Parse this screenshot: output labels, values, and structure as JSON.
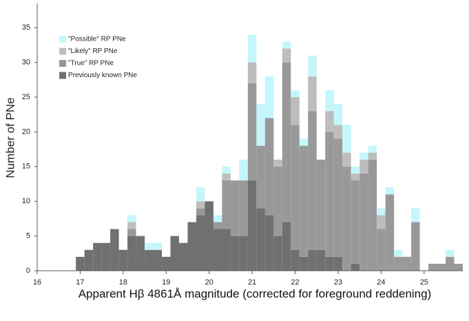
{
  "chart_data": {
    "type": "histogram",
    "xlabel": "Apparent Hβ 4861Å  magnitude (corrected for foreground reddening)",
    "ylabel": "Number of PNe",
    "bins": [
      16.9,
      17.1,
      17.3,
      17.5,
      17.7,
      17.9,
      18.1,
      18.3,
      18.5,
      18.7,
      18.9,
      19.1,
      19.3,
      19.5,
      19.7,
      19.9,
      20.1,
      20.3,
      20.5,
      20.7,
      20.9,
      21.1,
      21.3,
      21.5,
      21.7,
      21.9,
      22.1,
      22.3,
      22.5,
      22.7,
      22.9,
      23.1,
      23.3,
      23.5,
      23.7,
      23.9,
      24.1,
      24.3,
      24.5,
      24.7,
      24.9,
      25.1,
      25.3,
      25.5,
      25.7,
      25.9
    ],
    "series": [
      {
        "name": "Previously known PNe",
        "color": "#707070",
        "values": [
          2,
          3,
          4,
          4,
          6,
          3,
          5,
          5,
          3,
          3,
          2,
          5,
          4,
          7,
          8,
          10,
          6,
          6,
          5,
          5,
          13,
          9,
          8,
          5,
          7,
          3,
          2,
          3,
          3,
          2,
          2,
          0,
          1,
          0,
          0,
          0,
          0,
          0,
          0,
          0,
          0,
          0,
          0,
          0,
          0
        ]
      },
      {
        "name": "\"True\" RP PNe",
        "color": "#999999",
        "values": [
          0,
          0,
          0,
          0,
          0,
          0,
          1,
          0,
          0,
          0,
          0,
          0,
          0,
          0,
          1,
          0,
          1,
          7,
          8,
          8,
          14,
          9,
          14,
          10,
          23,
          18,
          16,
          20,
          13,
          18,
          17,
          15,
          12,
          14,
          16,
          6,
          11,
          2,
          2,
          7,
          0,
          1,
          1,
          2,
          1
        ]
      },
      {
        "name": "\"Likely\" RP PNe",
        "color": "#bdbdbd",
        "values": [
          0,
          0,
          0,
          0,
          0,
          0,
          1,
          0,
          0,
          0,
          0,
          0,
          0,
          0,
          1,
          0,
          0,
          1,
          0,
          0,
          3,
          0,
          0,
          1,
          2,
          4,
          0,
          5,
          0,
          3,
          2,
          2,
          1,
          2,
          1,
          2,
          0,
          0,
          0,
          0,
          0,
          0,
          0,
          0,
          0
        ]
      },
      {
        "name": "\"Possible\" RP PNe",
        "color": "#c4f6fc",
        "values": [
          0,
          0,
          0,
          0,
          0,
          0,
          1,
          0,
          1,
          1,
          0,
          0,
          0,
          0,
          2,
          0,
          1,
          1,
          0,
          3,
          4,
          6,
          6,
          0,
          1,
          1,
          1,
          3,
          0,
          3,
          3,
          4,
          1,
          1,
          1,
          1,
          1,
          1,
          0,
          2,
          0,
          0,
          0,
          1,
          0
        ]
      }
    ],
    "xlim": [
      16,
      25.9
    ],
    "xticks": [
      16,
      17,
      18,
      19,
      20,
      21,
      22,
      23,
      24,
      25
    ],
    "ylim": [
      0,
      38.5
    ],
    "yticks": [
      0,
      5,
      10,
      15,
      20,
      25,
      30,
      35
    ]
  }
}
